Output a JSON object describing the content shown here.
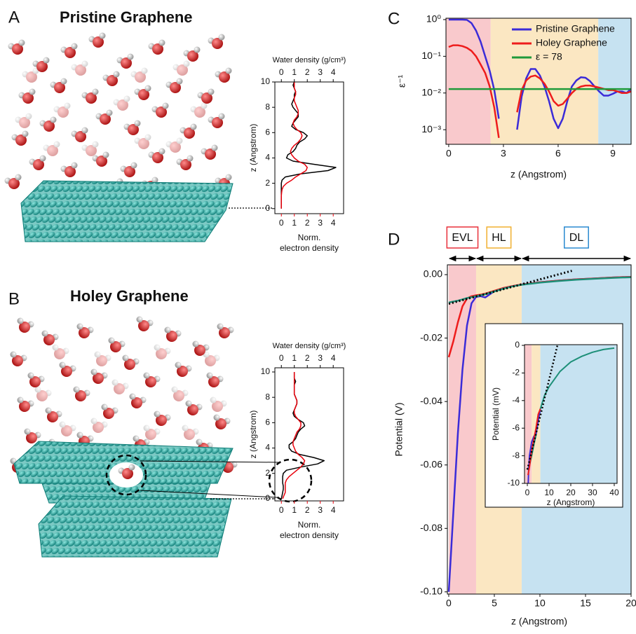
{
  "panels": [
    {
      "label": "A",
      "title": "Pristine Graphene"
    },
    {
      "label": "B",
      "title": "Holey Graphene"
    },
    {
      "label": "C"
    },
    {
      "label": "D"
    }
  ],
  "chart_data": [
    {
      "type": "line",
      "orientation": "vertical",
      "x_label": [
        "Norm.",
        "electron density"
      ],
      "x2_label": "Water density (g/cm³)",
      "y_label": "z (Angstrom)",
      "xlim": [
        -0.5,
        4.8
      ],
      "xticks": [
        0,
        1,
        2,
        3,
        4
      ],
      "x2lim": [
        -0.5,
        4.8
      ],
      "x2ticks": [
        0,
        1,
        2,
        3,
        4
      ],
      "ylim": [
        -0.4,
        10
      ],
      "yticks": [
        0,
        2,
        4,
        6,
        8,
        10
      ],
      "z": [
        0,
        0.25,
        0.5,
        0.75,
        1,
        1.25,
        1.5,
        1.75,
        2,
        2.25,
        2.5,
        2.75,
        3,
        3.25,
        3.5,
        3.75,
        4,
        4.25,
        4.5,
        4.75,
        5,
        5.25,
        5.5,
        5.75,
        6,
        6.25,
        6.5,
        6.75,
        7,
        7.25,
        7.5,
        7.75,
        8,
        8.25,
        8.5,
        8.75,
        9,
        9.25,
        9.5,
        9.75,
        10
      ],
      "series": [
        {
          "color": "#000000",
          "axis": "x2",
          "values": [
            0,
            0,
            0,
            0,
            0,
            0,
            0,
            0,
            0,
            0.05,
            0.3,
            1.5,
            3.6,
            4.2,
            2.5,
            0.9,
            0.4,
            0.5,
            0.9,
            1.1,
            1.2,
            1.4,
            1.8,
            2.0,
            1.7,
            1.1,
            0.8,
            0.9,
            1.1,
            1.3,
            1.3,
            1.1,
            0.9,
            0.8,
            0.9,
            1.0,
            1.0,
            1.1,
            1.0,
            0.9,
            1.0
          ]
        },
        {
          "color": "#e8000b",
          "values": [
            0,
            0,
            0,
            0,
            0,
            0.02,
            0.05,
            0.15,
            0.4,
            0.8,
            1.1,
            1.5,
            1.9,
            2.0,
            1.8,
            1.3,
            1.0,
            0.8,
            0.7,
            0.8,
            1.0,
            1.3,
            1.5,
            1.6,
            1.5,
            1.2,
            1.0,
            0.9,
            1.0,
            1.2,
            1.3,
            1.3,
            1.2,
            1.1,
            1.0,
            1.0,
            1.1,
            1.1,
            1.0,
            1.0,
            1.0
          ]
        }
      ]
    },
    {
      "type": "line",
      "orientation": "vertical",
      "x_label": [
        "Norm.",
        "electron density"
      ],
      "x2_label": "Water density (g/cm³)",
      "y_label": "z (Angstrom)",
      "xlim": [
        -0.5,
        4.8
      ],
      "xticks": [
        0,
        1,
        2,
        3,
        4
      ],
      "x2lim": [
        -0.5,
        4.8
      ],
      "x2ticks": [
        0,
        1,
        2,
        3,
        4
      ],
      "ylim": [
        -0.17,
        10.33
      ],
      "yticks": [
        0,
        2,
        4,
        6,
        8,
        10
      ],
      "z": [
        0,
        0.25,
        0.5,
        0.75,
        1,
        1.25,
        1.5,
        1.75,
        2,
        2.25,
        2.5,
        2.75,
        3,
        3.25,
        3.5,
        3.75,
        4,
        4.25,
        4.5,
        4.75,
        5,
        5.25,
        5.5,
        5.75,
        6,
        6.25,
        6.5,
        6.75,
        7,
        7.25,
        7.5,
        7.75,
        8,
        8.25,
        8.5,
        8.75,
        9,
        9.25,
        9.5,
        9.75,
        10
      ],
      "series": [
        {
          "color": "#000000",
          "axis": "x2",
          "values": [
            0,
            0.05,
            0.1,
            0.15,
            0.15,
            0.1,
            0.1,
            0.1,
            0.15,
            0.4,
            1.5,
            2.8,
            3.3,
            2.5,
            1.4,
            0.8,
            0.6,
            0.6,
            0.9,
            1.1,
            1.2,
            1.3,
            1.5,
            1.8,
            1.7,
            1.3,
            1.0,
            0.9,
            1.0,
            1.1,
            1.2,
            1.2,
            1.1,
            1.0,
            1.0,
            1.0,
            1.0,
            1.1,
            1.0,
            1.0,
            1.0
          ]
        },
        {
          "color": "#e8000b",
          "values": [
            0.1,
            0.2,
            0.3,
            0.3,
            0.3,
            0.3,
            0.4,
            0.6,
            0.9,
            1.2,
            1.5,
            1.7,
            1.8,
            1.6,
            1.3,
            1.1,
            1.0,
            0.9,
            0.9,
            1.0,
            1.1,
            1.2,
            1.4,
            1.5,
            1.5,
            1.3,
            1.1,
            1.0,
            1.0,
            1.1,
            1.2,
            1.2,
            1.1,
            1.0,
            1.0,
            1.0,
            1.0,
            1.0,
            1.0,
            1.0,
            1.0
          ]
        }
      ]
    },
    {
      "type": "line",
      "scale_y": "log",
      "x_label": "z (Angstrom)",
      "y_label": "ε⁻¹",
      "legend": "upper right",
      "xlim": [
        -0.15,
        10
      ],
      "xticks": [
        0,
        3,
        6,
        9
      ],
      "ylim": [
        0.0004,
        1.09
      ],
      "yticks": [
        {
          "value": 1,
          "label": "10⁰"
        },
        {
          "value": 0.1,
          "label": "10⁻¹"
        },
        {
          "value": 0.01,
          "label": "10⁻²"
        },
        {
          "value": 0.001,
          "label": "10⁻³"
        }
      ],
      "regions": [
        {
          "range": [
            -0.15,
            2.3
          ],
          "color": "#f9c9cc"
        },
        {
          "range": [
            2.3,
            8.2
          ],
          "color": "#fbe7c2"
        },
        {
          "range": [
            8.2,
            10
          ],
          "color": "#c6e2f1"
        }
      ],
      "x": [
        0,
        0.25,
        0.5,
        0.75,
        1,
        1.25,
        1.5,
        1.75,
        2,
        2.25,
        2.5,
        2.75,
        3,
        3.25,
        3.5,
        3.75,
        4,
        4.25,
        4.5,
        4.75,
        5,
        5.25,
        5.5,
        5.75,
        6,
        6.25,
        6.5,
        6.75,
        7,
        7.25,
        7.5,
        7.75,
        8,
        8.25,
        8.5,
        8.75,
        9,
        9.25,
        9.5,
        9.75,
        10
      ],
      "series": [
        {
          "name": "Pristine Graphene",
          "color": "#3b2bd8",
          "values": [
            1,
            1,
            1,
            1,
            0.98,
            0.8,
            0.5,
            0.25,
            0.1,
            0.04,
            0.012,
            0.002,
            null,
            null,
            null,
            0.001,
            0.008,
            0.025,
            0.045,
            0.045,
            0.03,
            0.015,
            0.006,
            0.002,
            0.0011,
            0.002,
            0.006,
            0.015,
            0.022,
            0.027,
            0.026,
            0.021,
            0.015,
            0.011,
            0.0085,
            0.0085,
            0.0095,
            0.011,
            0.011,
            0.01,
            0.013
          ]
        },
        {
          "name": "Holey Graphene",
          "color": "#ee1c1c",
          "values": [
            0.18,
            0.2,
            0.2,
            0.19,
            0.17,
            0.14,
            0.1,
            0.06,
            0.035,
            0.015,
            0.004,
            0.0006,
            null,
            null,
            null,
            0.003,
            0.012,
            0.022,
            0.028,
            0.03,
            0.025,
            0.018,
            0.011,
            0.006,
            0.0045,
            0.005,
            0.007,
            0.01,
            0.013,
            0.015,
            0.016,
            0.016,
            0.015,
            0.014,
            0.013,
            0.012,
            0.012,
            0.011,
            0.01,
            0.01,
            0.011
          ]
        },
        {
          "name": "ε = 78",
          "color": "#1f9a3a",
          "x": [
            0,
            10
          ],
          "values": [
            0.0128,
            0.0128
          ]
        }
      ]
    },
    {
      "type": "line",
      "x_label": "z (Angstrom)",
      "y_label": "Potential (V)",
      "xlim": [
        -0.15,
        20
      ],
      "xticks": [
        0,
        5,
        10,
        15,
        20
      ],
      "ylim": [
        -0.1007,
        0.0031
      ],
      "yticks": [
        {
          "value": -0.1,
          "label": "-0.10"
        },
        -0.08,
        -0.06,
        -0.04,
        -0.02,
        {
          "value": 0,
          "label": "0.00"
        }
      ],
      "regions": [
        {
          "label": "EVL",
          "range": [
            0,
            3
          ],
          "color": "#f9c9cc",
          "edge_color": "#e8303a"
        },
        {
          "label": "HL",
          "range": [
            3,
            8
          ],
          "color": "#fbe7c2",
          "edge_color": "#f0b030"
        },
        {
          "label": "DL",
          "range": [
            8,
            20
          ],
          "color": "#c6e2f1",
          "edge_color": "#2a8ad0"
        }
      ],
      "x": [
        0,
        0.5,
        1,
        1.5,
        2,
        2.5,
        3,
        3.5,
        4,
        5,
        6,
        7,
        8,
        10,
        12,
        14,
        16,
        18,
        20
      ],
      "series": [
        {
          "color": "#3b2bd8",
          "values": [
            -0.1,
            -0.075,
            -0.05,
            -0.03,
            -0.016,
            -0.009,
            -0.007,
            -0.0068,
            -0.0072,
            -0.0052,
            -0.0042,
            -0.0036,
            -0.0031,
            -0.0024,
            -0.0019,
            -0.0015,
            -0.0012,
            -0.0009,
            -0.0007
          ]
        },
        {
          "color": "#ee1c1c",
          "values": [
            -0.026,
            -0.021,
            -0.015,
            -0.01,
            -0.0075,
            -0.0068,
            -0.0065,
            -0.0063,
            -0.006,
            -0.0051,
            -0.0042,
            -0.0036,
            -0.0031,
            -0.0024,
            -0.0019,
            -0.0015,
            -0.0012,
            -0.0009,
            -0.0007
          ]
        },
        {
          "color": "#1d8f78",
          "values": [
            -0.0088,
            -0.0085,
            -0.0082,
            -0.0078,
            -0.0074,
            -0.0071,
            -0.0068,
            -0.0065,
            -0.0062,
            -0.0053,
            -0.0044,
            -0.0037,
            -0.0032,
            -0.0025,
            -0.002,
            -0.0016,
            -0.0013,
            -0.001,
            -0.0008
          ]
        },
        {
          "color": "#000000",
          "style": "dotted",
          "x": [
            0,
            13.5
          ],
          "values": [
            -0.0092,
            0.0012
          ]
        }
      ]
    },
    {
      "type": "line",
      "x_label": "z (Angstrom)",
      "y_label": "Potential (mV)",
      "xlim": [
        -1.3,
        41.3
      ],
      "xticks": [
        0,
        10,
        20,
        30,
        40
      ],
      "ylim": [
        -10,
        0.05
      ],
      "yticks": [
        -10,
        -8,
        -6,
        -4,
        -2,
        0
      ],
      "regions": [
        {
          "range": [
            -1.3,
            2
          ],
          "color": "#f9c9cc"
        },
        {
          "range": [
            2,
            6
          ],
          "color": "#fbe7c2"
        },
        {
          "range": [
            6,
            41.3
          ],
          "color": "#c6e2f1"
        }
      ],
      "x": [
        0,
        1,
        2,
        3,
        4,
        5,
        6,
        8,
        10,
        15,
        20,
        25,
        30,
        35,
        40
      ],
      "series": [
        {
          "color": "#1d8f78",
          "values": [
            -9,
            -8.7,
            -8,
            -7.2,
            -6.5,
            -5.5,
            -4.6,
            -3.6,
            -3.0,
            -1.9,
            -1.2,
            -0.8,
            -0.5,
            -0.3,
            -0.2
          ]
        },
        {
          "color": "#3b2bd8",
          "x": [
            0.4,
            0.6,
            1,
            2,
            3,
            4,
            5,
            6
          ],
          "values": [
            -10,
            -9,
            -8,
            -7,
            -6.6,
            -6.4,
            -5.5,
            -4.6
          ]
        },
        {
          "color": "#ee1c1c",
          "x": [
            0.3,
            1,
            2,
            3,
            4,
            5,
            6
          ],
          "values": [
            -9.4,
            -8.8,
            -7.6,
            -6.8,
            -6,
            -5,
            -4.6
          ]
        },
        {
          "color": "#000000",
          "style": "dotted",
          "x": [
            0,
            14
          ],
          "values": [
            -9,
            0.1
          ]
        }
      ]
    }
  ]
}
